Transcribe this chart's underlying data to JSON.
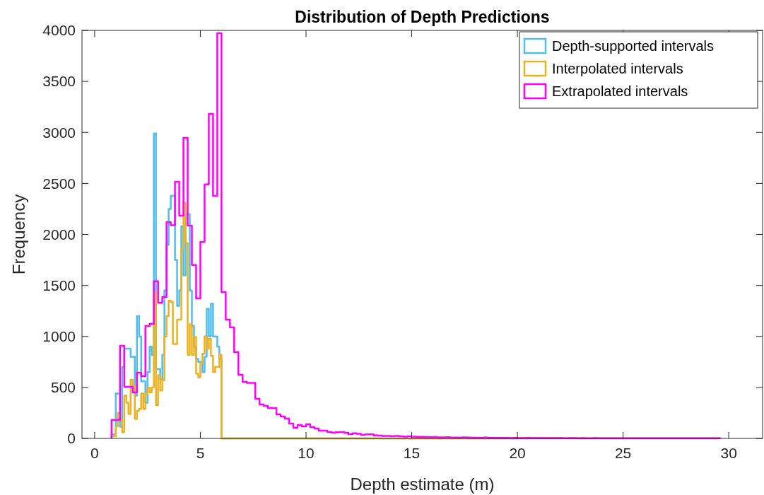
{
  "chart_data": {
    "type": "histogram",
    "title": "Distribution of Depth Predictions",
    "xlabel": "Depth estimate (m)",
    "ylabel": "Frequency",
    "xlim": [
      -0.6,
      31.6
    ],
    "xticks": [
      0,
      5,
      10,
      15,
      20,
      25,
      30
    ],
    "ylim": [
      0,
      4000
    ],
    "yticks": [
      0,
      500,
      1000,
      1500,
      2000,
      2500,
      3000,
      3500,
      4000
    ],
    "legend": "top right",
    "grid": false,
    "bins": [
      0.8,
      0.9,
      1,
      1.1,
      1.2,
      1.3,
      1.4,
      1.5,
      1.6,
      1.7,
      1.8,
      1.9,
      2,
      2.1,
      2.2,
      2.3,
      2.4,
      2.5,
      2.6,
      2.7,
      2.8,
      2.9,
      3,
      3.1,
      3.2,
      3.3,
      3.4,
      3.5,
      3.6,
      3.7,
      3.8,
      3.9,
      4,
      4.1,
      4.2,
      4.3,
      4.4,
      4.5,
      4.6,
      4.7,
      4.8,
      4.9,
      5,
      5.1,
      5.2,
      5.3,
      5.4,
      5.5,
      5.6,
      5.7,
      5.8,
      5.9,
      6,
      6.1,
      6.2,
      6.3,
      6.4,
      6.5,
      6.6,
      6.7,
      6.8,
      6.9,
      7,
      7.1,
      7.2,
      7.3,
      7.4,
      7.5,
      7.6,
      7.7,
      7.8,
      7.9,
      8,
      8.1,
      8.2,
      8.3,
      8.4,
      8.5,
      8.6,
      8.7,
      8.8,
      8.9,
      9,
      9.1,
      9.2,
      9.3,
      9.4,
      9.5,
      9.6,
      9.7,
      9.8,
      9.9,
      10,
      10.1,
      10.2,
      10.3,
      10.4,
      10.5,
      10.6,
      10.7,
      10.8,
      10.9,
      11,
      11.1,
      11.2,
      11.3,
      11.4,
      11.5,
      11.6,
      11.7,
      11.8,
      11.9,
      12,
      12.1,
      12.2,
      12.3,
      12.4,
      12.5,
      12.6,
      12.7,
      12.8,
      12.9,
      13,
      13.1,
      13.2,
      13.3,
      13.4,
      13.5,
      13.6,
      13.7,
      13.8,
      13.9,
      14,
      14.1,
      14.2,
      14.3,
      14.4,
      14.5,
      14.6,
      14.7,
      14.8,
      14.9,
      15,
      15.1,
      15.2,
      15.3,
      15.4,
      15.5,
      15.6,
      15.7,
      15.8,
      15.9,
      16,
      16.1,
      16.2,
      16.3,
      16.4,
      16.5,
      16.6,
      16.7,
      16.8,
      16.9,
      17,
      17.1,
      17.2,
      17.3,
      17.4,
      17.5,
      17.6,
      17.7,
      17.8,
      17.9,
      18,
      18.1,
      18.2,
      18.3,
      18.4,
      18.5,
      18.6,
      18.7,
      18.8,
      18.9,
      19,
      19.1,
      19.2,
      19.3,
      19.4,
      19.5,
      19.6,
      19.7,
      19.8,
      19.9,
      20,
      20.1,
      20.2,
      20.3,
      20.4,
      20.5,
      20.6,
      20.7,
      20.8,
      20.9,
      21,
      21.1,
      21.2,
      21.3,
      21.4,
      21.5,
      21.6,
      21.7,
      21.8,
      21.9,
      22,
      22.1,
      22.2,
      22.3,
      22.4,
      22.5,
      22.6,
      22.7,
      22.8,
      22.9,
      23,
      23.1,
      23.2,
      23.3,
      23.4,
      23.5,
      23.6,
      23.7,
      23.8,
      23.9,
      24,
      24.1,
      24.2,
      24.3,
      24.4,
      24.5,
      24.6,
      24.7,
      24.8,
      24.9,
      25,
      25.1,
      25.2,
      25.3,
      25.4,
      25.5,
      25.6,
      25.7,
      25.8,
      25.9,
      26,
      26.1,
      26.2,
      26.3,
      26.4,
      26.5,
      26.6,
      26.7,
      26.8,
      26.9,
      27,
      27.1,
      27.2,
      27.3,
      27.4,
      27.5,
      27.6,
      27.7,
      27.8,
      27.9,
      28,
      28.1,
      28.2,
      28.3,
      28.4,
      28.5,
      28.6,
      28.7,
      28.8,
      28.9,
      29,
      29.1,
      29.2,
      29.3,
      29.4,
      29.5,
      29.6
    ],
    "series": [
      {
        "name": "Depth-supported intervals",
        "color": "#4dbeee",
        "values": [
          40,
          40,
          440,
          440,
          115,
          700,
          880,
          880,
          880,
          800,
          800,
          420,
          1200,
          1000,
          560,
          560,
          350,
          650,
          900,
          820,
          2990,
          680,
          680,
          580,
          820,
          1450,
          1900,
          2250,
          2380,
          2380,
          1750,
          1300,
          1450,
          2080,
          1600,
          2200,
          2200,
          1450,
          1100,
          900,
          780,
          750,
          750,
          650,
          800,
          1270,
          1000,
          1320,
          1000,
          1000,
          900,
          780,
          0,
          0,
          0,
          0,
          0,
          0,
          0,
          0,
          0,
          0,
          0,
          0,
          0,
          0,
          0,
          0,
          0,
          0,
          0,
          0,
          0,
          0,
          0,
          0,
          0,
          0,
          0,
          0,
          0,
          0,
          0,
          0,
          0,
          0,
          0,
          0,
          0,
          0,
          0,
          0,
          0,
          0,
          0,
          0,
          0,
          0,
          0,
          0,
          0,
          0,
          0,
          0,
          0,
          0,
          0,
          0,
          0,
          0,
          0,
          0,
          0,
          0,
          0,
          0,
          0,
          0,
          0,
          0,
          0,
          0,
          0,
          0,
          0,
          0,
          0,
          0,
          0,
          0,
          0,
          0,
          0,
          0,
          0,
          0,
          0,
          0,
          0,
          0,
          0,
          0,
          0,
          0,
          0,
          0,
          0,
          0,
          0,
          0,
          0,
          0,
          0,
          0,
          0,
          0,
          0,
          0,
          0,
          0,
          0,
          0,
          0,
          0,
          0,
          0,
          0,
          0,
          0,
          0,
          0,
          0,
          0,
          0,
          0,
          0,
          0,
          0,
          0,
          0,
          0,
          0,
          0,
          0,
          0,
          0,
          0,
          0,
          0,
          0,
          0,
          0,
          0,
          0,
          0,
          0,
          0,
          0,
          0,
          0,
          0,
          0,
          0,
          0,
          0,
          0,
          0,
          0,
          0,
          0,
          0,
          0,
          0,
          0,
          0,
          0,
          0,
          0,
          0,
          0,
          0,
          0,
          0,
          0,
          0,
          0,
          0,
          0,
          0,
          0,
          0,
          0,
          0,
          0,
          0,
          0,
          0,
          0,
          0,
          0,
          0,
          0,
          0,
          0,
          0,
          0,
          0,
          0,
          0,
          0,
          0,
          0,
          0,
          0,
          0,
          0,
          0,
          0,
          0,
          0,
          0,
          0,
          0,
          0,
          0,
          0,
          0,
          0,
          0,
          0,
          0,
          0,
          0,
          0,
          0,
          0,
          0,
          0,
          0,
          0,
          0,
          0,
          0,
          0,
          0,
          0,
          0,
          0
        ]
      },
      {
        "name": "Interpolated intervals",
        "color": "#edb120",
        "values": [
          20,
          20,
          120,
          250,
          180,
          60,
          420,
          350,
          240,
          575,
          510,
          190,
          270,
          290,
          440,
          290,
          440,
          500,
          450,
          500,
          1430,
          327,
          620,
          470,
          570,
          1000,
          1200,
          1350,
          1340,
          925,
          925,
          1165,
          1165,
          1860,
          2310,
          1915,
          820,
          1120,
          820,
          995,
          635,
          600,
          740,
          830,
          1000,
          880,
          975,
          810,
          650,
          700,
          700,
          820,
          0,
          0,
          0,
          0,
          0,
          0,
          0,
          0,
          0,
          0,
          0,
          0,
          0,
          0,
          0,
          0,
          0,
          0,
          0,
          0,
          0,
          0,
          0,
          0,
          0,
          0,
          0,
          0,
          0,
          0,
          0,
          0,
          0,
          0,
          0,
          0,
          0,
          0,
          0,
          0,
          0,
          0,
          0,
          0,
          0,
          0,
          0,
          0,
          0,
          0,
          0,
          0,
          0,
          0,
          0,
          0,
          0,
          0,
          0,
          0,
          0,
          0,
          0,
          0,
          0,
          0,
          0,
          0,
          0,
          0,
          0,
          0,
          0,
          0,
          0,
          0,
          0,
          0,
          0,
          0,
          0,
          0,
          0,
          0,
          0,
          0,
          0,
          0,
          0,
          0,
          0,
          0,
          0,
          0,
          0,
          0,
          0,
          0,
          0,
          0,
          0,
          0,
          0,
          0,
          0,
          0,
          0,
          0,
          0,
          0,
          0,
          0,
          0,
          0,
          0,
          0,
          0,
          0,
          0,
          0,
          0,
          0,
          0,
          0,
          0,
          0,
          0,
          0,
          0,
          0,
          0,
          0,
          0,
          0,
          0,
          0,
          0,
          0,
          0,
          0,
          0,
          0,
          0,
          0,
          0,
          0,
          0,
          0,
          0,
          0,
          0,
          0,
          0,
          0,
          0,
          0,
          0,
          0,
          0,
          0,
          0,
          0,
          0,
          0,
          0,
          0,
          0,
          0,
          0,
          0,
          0,
          0,
          0,
          0,
          0,
          0,
          0,
          0,
          0,
          0,
          0,
          0,
          0,
          0,
          0,
          0,
          0,
          0,
          0,
          0,
          0,
          0,
          0,
          0,
          0,
          0,
          0,
          0,
          0,
          0,
          0,
          0,
          0,
          0,
          0,
          0,
          0,
          0,
          0,
          0,
          0,
          0,
          0,
          0,
          0,
          0,
          0,
          0,
          0,
          0,
          0,
          0,
          0,
          0,
          0,
          0,
          0,
          0,
          0,
          0,
          0,
          0,
          0,
          0,
          0,
          0
        ]
      },
      {
        "name": "Extrapolated intervals",
        "color": "#ff00ff",
        "values": [
          180,
          180,
          180,
          180,
          908,
          908,
          506,
          506,
          506,
          506,
          450,
          450,
          645,
          645,
          610,
          610,
          1102,
          1102,
          1123,
          1123,
          1540,
          1540,
          1330,
          1330,
          1387,
          1387,
          2120,
          2120,
          2090,
          2090,
          2516,
          2516,
          2183,
          2183,
          2946,
          2946,
          2087,
          2087,
          1700,
          1700,
          1373,
          1373,
          1925,
          1925,
          2490,
          2490,
          3182,
          3182,
          2378,
          2378,
          3972,
          3972,
          1435,
          1435,
          1165,
          1165,
          1088,
          1088,
          846,
          846,
          624,
          624,
          555,
          555,
          545,
          545,
          545,
          545,
          388,
          388,
          333,
          333,
          319,
          319,
          298,
          298,
          298,
          298,
          236,
          236,
          215,
          215,
          194,
          194,
          146,
          146,
          104,
          104,
          132,
          132,
          118,
          118,
          139,
          139,
          111,
          111,
          97,
          97,
          76,
          76,
          76,
          76,
          64,
          64,
          58,
          58,
          60,
          60,
          62,
          62,
          55,
          55,
          42,
          42,
          51,
          51,
          45,
          45,
          35,
          35,
          40,
          40,
          40,
          40,
          30,
          30,
          28,
          28,
          25,
          25,
          25,
          25,
          22,
          22,
          24,
          24,
          20,
          20,
          18,
          18,
          20,
          20,
          17,
          17,
          15,
          15,
          16,
          16,
          14,
          14,
          12,
          12,
          13,
          13,
          11,
          11,
          10,
          10,
          12,
          12,
          9,
          9,
          9,
          9,
          8,
          8,
          10,
          10,
          8,
          8,
          7,
          7,
          7,
          7,
          6,
          6,
          8,
          8,
          6,
          6,
          5,
          5,
          6,
          6,
          5,
          5,
          5,
          5,
          4,
          4,
          6,
          6,
          4,
          4,
          4,
          4,
          5,
          5,
          3,
          3,
          4,
          4,
          3,
          3,
          4,
          4,
          3,
          3,
          3,
          3,
          4,
          4,
          3,
          3,
          2,
          2,
          3,
          3,
          3,
          3,
          2,
          2,
          3,
          3,
          2,
          2,
          2,
          2,
          3,
          3,
          2,
          2,
          2,
          2,
          2,
          2,
          1,
          1,
          2,
          2,
          2,
          2,
          1,
          1,
          2,
          2,
          2,
          2,
          1,
          1,
          2,
          2,
          1,
          1,
          1,
          1,
          2,
          2,
          1,
          1,
          1,
          1,
          2,
          2,
          1,
          1,
          1,
          1,
          1,
          1,
          1,
          1,
          1,
          1,
          2,
          2,
          1,
          1,
          1,
          1,
          1,
          1,
          1,
          1,
          1,
          1,
          2,
          2
        ]
      }
    ]
  }
}
